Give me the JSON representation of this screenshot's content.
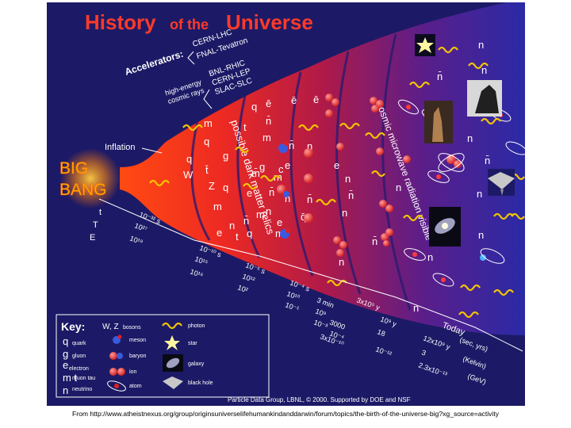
{
  "title": {
    "part1": "History",
    "part2": "of the",
    "part3": "Universe"
  },
  "accelerators": {
    "label": "Accelerators:",
    "items": [
      "CERN-LHC",
      "FNAL-Tevatron",
      "BNL-RHIC",
      "CERN-LEP",
      "SLAC-SLC"
    ],
    "high_energy": "high-energy",
    "cosmic_rays": "cosmic rays"
  },
  "inflation": "Inflation",
  "big_bang": {
    "line1": "BIG",
    "line2": "BANG"
  },
  "dark_matter": "possible dark matter relics",
  "cmb": "cosmic microwave radiation visible",
  "timeline": {
    "t_label": "t",
    "T_label": "T",
    "E_label": "E",
    "t_values": [
      "10⁻³² s",
      "10⁻¹⁰ s",
      "10⁻⁵ s",
      "10⁻⁴ s",
      "3 min",
      "3x10⁵ y",
      "10⁹ y",
      "12x10⁹ y"
    ],
    "T_values": [
      "10²⁷",
      "10¹⁵",
      "10¹²",
      "10¹⁰",
      "10⁹",
      "3000",
      "18",
      "3"
    ],
    "E_values": [
      "10¹⁹",
      "10¹⁶",
      "10²",
      "10⁻¹",
      "10⁻³",
      "10⁻⁴",
      "3x10⁻¹⁰",
      "10⁻¹²",
      "2.3x10⁻¹³"
    ],
    "today": "Today",
    "units": [
      "(sec, yrs)",
      "(Kelvin)",
      "(GeV)"
    ]
  },
  "particles": {
    "q": "q",
    "qbar": "q̄",
    "g": "g",
    "W": "W",
    "Z": "Z",
    "t": "t",
    "tbar": "t̄",
    "e": "e",
    "ebar": "ē",
    "n": "n",
    "nbar": "n̄",
    "m": "m",
    "mbar": "m̄",
    "c": "c"
  },
  "key": {
    "title": "Key:",
    "left_rows": [
      {
        "symbol": "W, Z",
        "label": "bosons"
      },
      {
        "symbol": "q",
        "label": "quark"
      },
      {
        "symbol": "g",
        "label": "gluon"
      },
      {
        "symbol": "e",
        "label": "electron"
      },
      {
        "symbol": "m t",
        "label": "muon tau"
      },
      {
        "symbol": "n",
        "label": "neutrino"
      }
    ],
    "mid_rows": [
      "meson",
      "baryon",
      "ion",
      "atom"
    ],
    "right_rows": [
      "photon",
      "star",
      "galaxy",
      "black hole"
    ]
  },
  "credit": "Particle Data Group, LBNL, © 2000.   Supported by DOE and NSF",
  "source_caption": "From http://www.atheistnexus.org/group/originsuniverselifehumankindanddarwin/forum/topics/the-birth-of-the-universe-big?xg_source=activity",
  "colors": {
    "background": "#1c1a66",
    "cone_hot": "#ff3010",
    "cone_mid": "#c02040",
    "cone_cool": "#3a2a9e",
    "title": "#ff3a28",
    "photon": "#f2c400",
    "big_bang": "#ffb000",
    "text": "#ffffff"
  }
}
